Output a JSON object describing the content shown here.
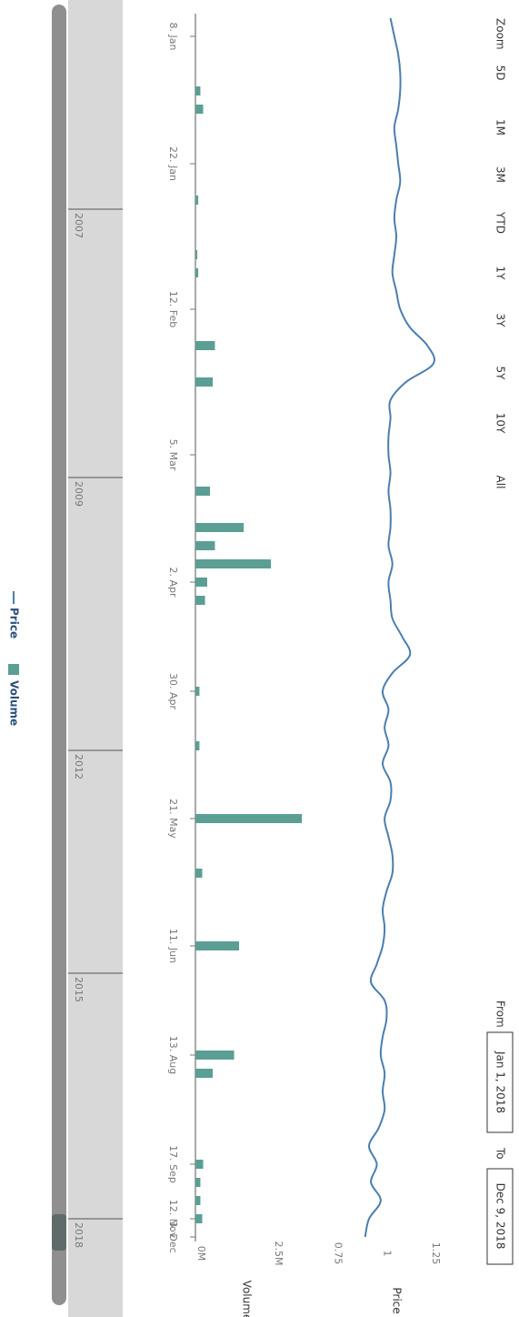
{
  "zoom": {
    "label": "Zoom",
    "buttons": [
      "5D",
      "1M",
      "3M",
      "YTD",
      "1Y",
      "3Y",
      "5Y",
      "10Y",
      "All"
    ]
  },
  "range": {
    "from_label": "From",
    "from": "Jan 1, 2018",
    "to_label": "To",
    "to": "Dec 9, 2018"
  },
  "chart_data": {
    "type": "stock",
    "categories": [
      null,
      "8. Jan",
      null,
      null,
      null,
      null,
      null,
      null,
      "22. Jan",
      null,
      null,
      null,
      null,
      null,
      null,
      null,
      "12. Feb",
      null,
      null,
      null,
      null,
      null,
      null,
      null,
      "5. Mar",
      null,
      null,
      null,
      null,
      null,
      null,
      "2. Apr",
      null,
      null,
      null,
      null,
      null,
      "30. Apr",
      null,
      null,
      null,
      null,
      null,
      null,
      "21. May",
      null,
      null,
      null,
      null,
      null,
      null,
      "11. Jun",
      null,
      null,
      null,
      null,
      null,
      "13. Aug",
      null,
      null,
      null,
      null,
      null,
      "17. Sep",
      null,
      null,
      "12. Nov",
      "3. Dec"
    ],
    "series": [
      {
        "name": "Price",
        "color": "#4a7eb0",
        "values": [
          1.02,
          1.04,
          1.06,
          1.07,
          1.07,
          1.06,
          1.04,
          1.05,
          1.06,
          1.07,
          1.05,
          1.04,
          1.05,
          1.04,
          1.03,
          1.05,
          1.07,
          1.12,
          1.21,
          1.24,
          1.1,
          1.02,
          1.02,
          1.01,
          1.01,
          1.02,
          1.01,
          1.02,
          1.02,
          1.01,
          1.03,
          1.01,
          1.02,
          1.03,
          1.08,
          1.12,
          1.03,
          0.98,
          1.01,
          0.99,
          1.01,
          0.98,
          1.02,
          1.02,
          0.99,
          1.01,
          1.03,
          1.03,
          1.0,
          0.98,
          0.99,
          0.98,
          0.95,
          0.92,
          0.99,
          1.0,
          0.98,
          0.97,
          0.99,
          0.98,
          0.99,
          0.96,
          0.91,
          0.95,
          0.92,
          0.97,
          0.91,
          0.89
        ]
      },
      {
        "name": "Volume",
        "color": "#5b9e94",
        "axis": "y2",
        "values": [
          0,
          0,
          0,
          0,
          160000,
          250000,
          0,
          0,
          0,
          0,
          90000,
          0,
          0,
          60000,
          90000,
          0,
          0,
          0,
          630000,
          0,
          560000,
          0,
          0,
          0,
          0,
          0,
          470000,
          0,
          1560000,
          630000,
          2440000,
          380000,
          310000,
          0,
          0,
          0,
          0,
          130000,
          0,
          0,
          130000,
          0,
          0,
          0,
          3440000,
          0,
          0,
          220000,
          0,
          0,
          0,
          1410000,
          0,
          0,
          0,
          0,
          0,
          1250000,
          560000,
          0,
          0,
          0,
          0,
          250000,
          160000,
          160000,
          220000,
          0
        ]
      }
    ],
    "ylim": [
      0.7,
      1.4
    ],
    "yticks": [
      0.75,
      1,
      1.25
    ],
    "ylabel": "Price",
    "y2lim": [
      0,
      3700000
    ],
    "y2ticks": [
      {
        "value": 0,
        "label": "0M"
      },
      {
        "value": 2500000,
        "label": "2.5M"
      }
    ],
    "y2label": "Volume",
    "navigator_labels": [
      "2007",
      "2009",
      "2012",
      "2015",
      "2018"
    ]
  }
}
